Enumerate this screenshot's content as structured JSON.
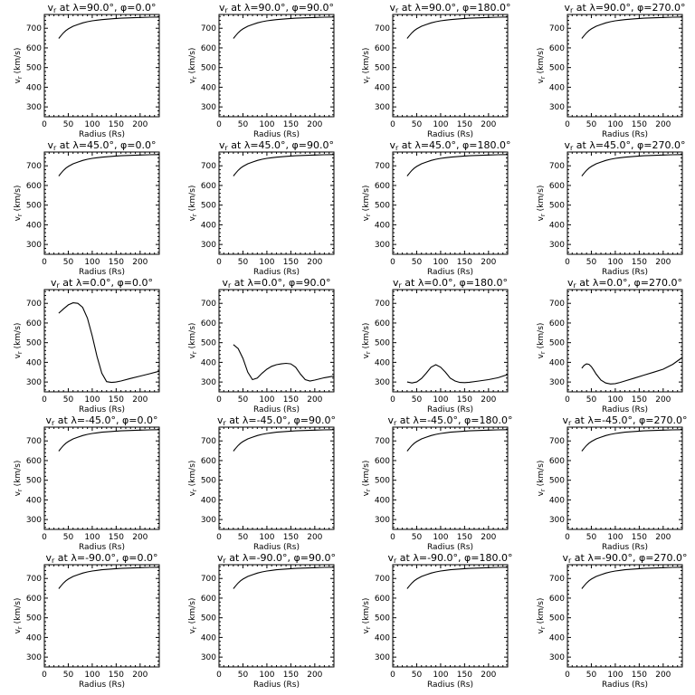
{
  "chart_data": {
    "type": "line",
    "layout": "5 rows x 4 columns",
    "shared_axes": {
      "xlabel": "Radius (Rs)",
      "ylabel": "v_r (km/s)",
      "xlim": [
        0,
        240
      ],
      "ylim": [
        250,
        770
      ],
      "xticks": [
        0,
        50,
        100,
        150,
        200
      ],
      "yticks": [
        300,
        400,
        500,
        600,
        700
      ],
      "grid": false
    },
    "panels": [
      {
        "title": "v_r at λ=90.0°, φ=0.0°",
        "lat": "90.0",
        "lon": "0.0",
        "x": [
          30,
          35,
          40,
          45,
          50,
          60,
          70,
          80,
          90,
          100,
          110,
          120,
          140,
          160,
          180,
          200,
          220,
          240
        ],
        "y": [
          648,
          663,
          677,
          688,
          697,
          710,
          719,
          727,
          733,
          738,
          741,
          744,
          748,
          751,
          753,
          755,
          756,
          757
        ]
      },
      {
        "title": "v_r at λ=90.0°, φ=90.0°",
        "lat": "90.0",
        "lon": "90.0",
        "x": [
          30,
          35,
          40,
          45,
          50,
          60,
          70,
          80,
          90,
          100,
          110,
          120,
          140,
          160,
          180,
          200,
          220,
          240
        ],
        "y": [
          648,
          663,
          677,
          688,
          697,
          710,
          719,
          727,
          733,
          738,
          741,
          744,
          748,
          751,
          753,
          755,
          756,
          757
        ]
      },
      {
        "title": "v_r at λ=90.0°, φ=180.0°",
        "lat": "90.0",
        "lon": "180.0",
        "x": [
          30,
          35,
          40,
          45,
          50,
          60,
          70,
          80,
          90,
          100,
          110,
          120,
          140,
          160,
          180,
          200,
          220,
          240
        ],
        "y": [
          648,
          663,
          677,
          688,
          697,
          710,
          719,
          727,
          733,
          738,
          741,
          744,
          748,
          751,
          753,
          755,
          756,
          757
        ]
      },
      {
        "title": "v_r at λ=90.0°, φ=270.0°",
        "lat": "90.0",
        "lon": "270.0",
        "x": [
          30,
          35,
          40,
          45,
          50,
          60,
          70,
          80,
          90,
          100,
          110,
          120,
          140,
          160,
          180,
          200,
          220,
          240
        ],
        "y": [
          648,
          663,
          677,
          688,
          697,
          710,
          719,
          727,
          733,
          738,
          741,
          744,
          748,
          751,
          753,
          755,
          756,
          757
        ]
      },
      {
        "title": "v_r at λ=45.0°, φ=0.0°",
        "lat": "45.0",
        "lon": "0.0",
        "x": [
          30,
          35,
          40,
          45,
          50,
          60,
          70,
          80,
          90,
          100,
          110,
          120,
          140,
          160,
          180,
          200,
          220,
          240
        ],
        "y": [
          648,
          663,
          677,
          688,
          697,
          710,
          719,
          727,
          733,
          738,
          741,
          744,
          748,
          751,
          753,
          755,
          756,
          757
        ]
      },
      {
        "title": "v_r at λ=45.0°, φ=90.0°",
        "lat": "45.0",
        "lon": "90.0",
        "x": [
          30,
          35,
          40,
          45,
          50,
          60,
          70,
          80,
          90,
          100,
          110,
          120,
          140,
          160,
          180,
          200,
          220,
          240
        ],
        "y": [
          648,
          663,
          677,
          688,
          697,
          710,
          719,
          727,
          733,
          738,
          741,
          744,
          748,
          751,
          753,
          755,
          756,
          757
        ]
      },
      {
        "title": "v_r at λ=45.0°, φ=180.0°",
        "lat": "45.0",
        "lon": "180.0",
        "x": [
          30,
          35,
          40,
          45,
          50,
          60,
          70,
          80,
          90,
          100,
          110,
          120,
          140,
          160,
          180,
          200,
          220,
          240
        ],
        "y": [
          648,
          663,
          677,
          688,
          697,
          710,
          719,
          727,
          733,
          738,
          741,
          744,
          748,
          751,
          753,
          755,
          756,
          757
        ]
      },
      {
        "title": "v_r at λ=45.0°, φ=270.0°",
        "lat": "45.0",
        "lon": "270.0",
        "x": [
          30,
          35,
          40,
          45,
          50,
          60,
          70,
          80,
          90,
          100,
          110,
          120,
          140,
          160,
          180,
          200,
          220,
          240
        ],
        "y": [
          648,
          663,
          677,
          688,
          697,
          710,
          719,
          727,
          733,
          738,
          741,
          744,
          748,
          751,
          753,
          755,
          756,
          757
        ]
      },
      {
        "title": "v_r at λ=0.0°, φ=0.0°",
        "lat": "0.0",
        "lon": "0.0",
        "x": [
          30,
          40,
          50,
          60,
          70,
          80,
          90,
          100,
          110,
          120,
          130,
          140,
          150,
          160,
          180,
          200,
          220,
          240
        ],
        "y": [
          650,
          672,
          692,
          703,
          700,
          680,
          625,
          535,
          430,
          345,
          302,
          298,
          300,
          305,
          318,
          330,
          342,
          355
        ]
      },
      {
        "title": "v_r at λ=0.0°, φ=90.0°",
        "lat": "0.0",
        "lon": "90.0",
        "x": [
          30,
          40,
          50,
          60,
          70,
          80,
          90,
          100,
          110,
          120,
          130,
          140,
          150,
          160,
          170,
          180,
          190,
          200,
          220,
          240
        ],
        "y": [
          490,
          470,
          420,
          350,
          312,
          320,
          345,
          365,
          380,
          388,
          392,
          395,
          392,
          375,
          340,
          312,
          305,
          310,
          322,
          330
        ]
      },
      {
        "title": "v_r at λ=0.0°, φ=180.0°",
        "lat": "0.0",
        "lon": "180.0",
        "x": [
          30,
          40,
          50,
          60,
          70,
          80,
          90,
          100,
          110,
          120,
          130,
          140,
          150,
          160,
          180,
          200,
          220,
          240
        ],
        "y": [
          300,
          295,
          300,
          318,
          345,
          375,
          388,
          375,
          350,
          320,
          305,
          298,
          297,
          299,
          305,
          312,
          322,
          338
        ]
      },
      {
        "title": "v_r at λ=0.0°, φ=270.0°",
        "lat": "0.0",
        "lon": "270.0",
        "x": [
          30,
          35,
          40,
          45,
          50,
          55,
          60,
          70,
          80,
          90,
          100,
          110,
          120,
          140,
          160,
          180,
          200,
          220,
          240
        ],
        "y": [
          370,
          385,
          392,
          390,
          378,
          360,
          340,
          310,
          295,
          290,
          292,
          298,
          305,
          320,
          335,
          350,
          365,
          390,
          425
        ]
      },
      {
        "title": "v_r at λ=-45.0°, φ=0.0°",
        "lat": "-45.0",
        "lon": "0.0",
        "x": [
          30,
          35,
          40,
          45,
          50,
          60,
          70,
          80,
          90,
          100,
          110,
          120,
          140,
          160,
          180,
          200,
          220,
          240
        ],
        "y": [
          648,
          663,
          677,
          688,
          697,
          710,
          719,
          727,
          733,
          738,
          741,
          744,
          748,
          751,
          753,
          755,
          756,
          757
        ]
      },
      {
        "title": "v_r at λ=-45.0°, φ=90.0°",
        "lat": "-45.0",
        "lon": "90.0",
        "x": [
          30,
          35,
          40,
          45,
          50,
          60,
          70,
          80,
          90,
          100,
          110,
          120,
          140,
          160,
          180,
          200,
          220,
          240
        ],
        "y": [
          648,
          663,
          677,
          688,
          697,
          710,
          719,
          727,
          733,
          738,
          741,
          744,
          748,
          751,
          753,
          755,
          756,
          757
        ]
      },
      {
        "title": "v_r at λ=-45.0°, φ=180.0°",
        "lat": "-45.0",
        "lon": "180.0",
        "x": [
          30,
          35,
          40,
          45,
          50,
          60,
          70,
          80,
          90,
          100,
          110,
          120,
          140,
          160,
          180,
          200,
          220,
          240
        ],
        "y": [
          648,
          663,
          677,
          688,
          697,
          710,
          719,
          727,
          733,
          738,
          741,
          744,
          748,
          751,
          753,
          755,
          756,
          757
        ]
      },
      {
        "title": "v_r at λ=-45.0°, φ=270.0°",
        "lat": "-45.0",
        "lon": "270.0",
        "x": [
          30,
          35,
          40,
          45,
          50,
          60,
          70,
          80,
          90,
          100,
          110,
          120,
          140,
          160,
          180,
          200,
          220,
          240
        ],
        "y": [
          648,
          663,
          677,
          688,
          697,
          710,
          719,
          727,
          733,
          738,
          741,
          744,
          748,
          751,
          753,
          755,
          756,
          757
        ]
      },
      {
        "title": "v_r at λ=-90.0°, φ=0.0°",
        "lat": "-90.0",
        "lon": "0.0",
        "x": [
          30,
          35,
          40,
          45,
          50,
          60,
          70,
          80,
          90,
          100,
          110,
          120,
          140,
          160,
          180,
          200,
          220,
          240
        ],
        "y": [
          648,
          663,
          677,
          688,
          697,
          710,
          719,
          727,
          733,
          738,
          741,
          744,
          748,
          751,
          753,
          755,
          756,
          757
        ]
      },
      {
        "title": "v_r at λ=-90.0°, φ=90.0°",
        "lat": "-90.0",
        "lon": "90.0",
        "x": [
          30,
          35,
          40,
          45,
          50,
          60,
          70,
          80,
          90,
          100,
          110,
          120,
          140,
          160,
          180,
          200,
          220,
          240
        ],
        "y": [
          648,
          663,
          677,
          688,
          697,
          710,
          719,
          727,
          733,
          738,
          741,
          744,
          748,
          751,
          753,
          755,
          756,
          757
        ]
      },
      {
        "title": "v_r at λ=-90.0°, φ=180.0°",
        "lat": "-90.0",
        "lon": "180.0",
        "x": [
          30,
          35,
          40,
          45,
          50,
          60,
          70,
          80,
          90,
          100,
          110,
          120,
          140,
          160,
          180,
          200,
          220,
          240
        ],
        "y": [
          648,
          663,
          677,
          688,
          697,
          710,
          719,
          727,
          733,
          738,
          741,
          744,
          748,
          751,
          753,
          755,
          756,
          757
        ]
      },
      {
        "title": "v_r at λ=-90.0°, φ=270.0°",
        "lat": "-90.0",
        "lon": "270.0",
        "x": [
          30,
          35,
          40,
          45,
          50,
          60,
          70,
          80,
          90,
          100,
          110,
          120,
          140,
          160,
          180,
          200,
          220,
          240
        ],
        "y": [
          648,
          663,
          677,
          688,
          697,
          710,
          719,
          727,
          733,
          738,
          741,
          744,
          748,
          751,
          753,
          755,
          756,
          757
        ]
      }
    ]
  }
}
